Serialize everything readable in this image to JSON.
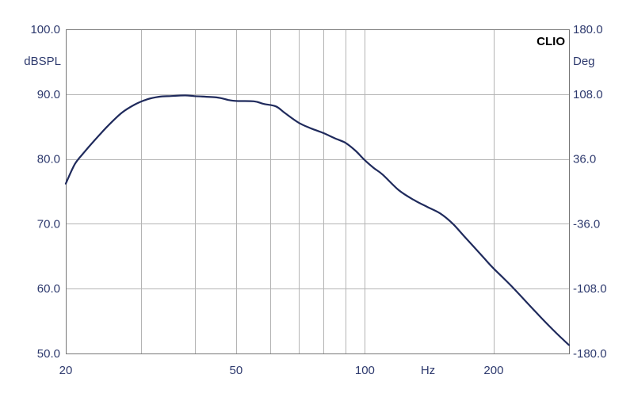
{
  "chart_data": {
    "type": "line",
    "brand": "CLIO",
    "xlabel": "Hz",
    "ylabel": "dBSPL",
    "y2label": "Deg",
    "x_scale": "log",
    "xlim": [
      20,
      300
    ],
    "ylim": [
      50,
      100
    ],
    "y2lim": [
      -180,
      180
    ],
    "x_gridlines": [
      30,
      40,
      50,
      60,
      70,
      80,
      90,
      100,
      200
    ],
    "x_ticks": [
      {
        "value": 20,
        "label": "20"
      },
      {
        "value": 50,
        "label": "50"
      },
      {
        "value": 100,
        "label": "100"
      },
      {
        "value": 200,
        "label": "200"
      }
    ],
    "y_ticks": [
      {
        "value": 100,
        "label": "100.0"
      },
      {
        "value": 90,
        "label": "90.0"
      },
      {
        "value": 80,
        "label": "80.0"
      },
      {
        "value": 70,
        "label": "70.0"
      },
      {
        "value": 60,
        "label": "60.0"
      },
      {
        "value": 50,
        "label": "50.0"
      }
    ],
    "y2_ticks": [
      {
        "value": 180,
        "label": "180.0"
      },
      {
        "value": 108,
        "label": "108.0"
      },
      {
        "value": 36,
        "label": "36.0"
      },
      {
        "value": -36,
        "label": "-36.0"
      },
      {
        "value": -108,
        "label": "-108.0"
      },
      {
        "value": -180,
        "label": "-180.0"
      }
    ],
    "grid": true,
    "series": [
      {
        "color": "#1f2a5c",
        "x": [
          20,
          21,
          22,
          23,
          25,
          27,
          29,
          31,
          33,
          35,
          38,
          40,
          45,
          48,
          50,
          55,
          58,
          62,
          65,
          70,
          75,
          80,
          85,
          90,
          95,
          100,
          105,
          110,
          120,
          130,
          140,
          150,
          160,
          170,
          180,
          190,
          200,
          220,
          250,
          270,
          290,
          300
        ],
        "y": [
          76.2,
          79.2,
          80.9,
          82.4,
          85.0,
          87.1,
          88.4,
          89.2,
          89.6,
          89.7,
          89.8,
          89.7,
          89.5,
          89.1,
          88.95,
          88.9,
          88.5,
          88.1,
          87.1,
          85.6,
          84.7,
          84.0,
          83.2,
          82.5,
          81.3,
          79.8,
          78.6,
          77.6,
          75.2,
          73.7,
          72.6,
          71.6,
          70.1,
          68.2,
          66.4,
          64.7,
          63.1,
          60.4,
          56.5,
          54.2,
          52.2,
          51.3
        ]
      }
    ]
  }
}
